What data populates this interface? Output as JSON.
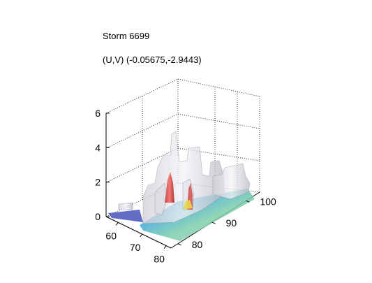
{
  "figure": {
    "title": "Storm 6699",
    "subtitle": "(U,V) (-0.05675,-2.9443)"
  },
  "chart_data": {
    "type": "surface3d",
    "title": "Storm 6699",
    "subtitle": "(U,V) (-0.05675,-2.9443)",
    "xlabel": "",
    "ylabel": "",
    "zlabel": "",
    "x_ticks": [
      60,
      70,
      80
    ],
    "y_ticks": [
      80,
      90,
      100
    ],
    "z_ticks": [
      0,
      2,
      4,
      6
    ],
    "xlim": [
      55,
      82
    ],
    "ylim": [
      78,
      104
    ],
    "zlim": [
      0,
      6
    ],
    "grid": true,
    "box": "dotted-axes",
    "colormap": "jet",
    "surface_color": "#e8e8ee",
    "max_height_approx": 5.2
  }
}
